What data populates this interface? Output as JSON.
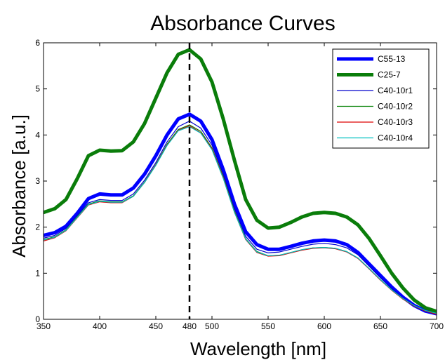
{
  "chart_data": {
    "type": "line",
    "title": "Absorbance Curves",
    "xlabel": "Wavelength [nm]",
    "ylabel": "Absorbance [a.u.]",
    "xlim": [
      350,
      700
    ],
    "ylim": [
      0,
      6
    ],
    "xticks": [
      350,
      400,
      450,
      480,
      500,
      550,
      600,
      650,
      700
    ],
    "yticks": [
      0,
      1,
      2,
      3,
      4,
      5,
      6
    ],
    "grid": false,
    "legend_position": "top-right",
    "vertical_marker": {
      "x": 480,
      "style": "dashed",
      "color": "#000000"
    },
    "x": [
      350,
      360,
      370,
      380,
      390,
      400,
      410,
      420,
      430,
      440,
      450,
      460,
      470,
      480,
      490,
      500,
      510,
      520,
      530,
      540,
      550,
      560,
      570,
      580,
      590,
      600,
      610,
      620,
      630,
      640,
      650,
      660,
      670,
      680,
      690,
      700
    ],
    "series": [
      {
        "name": "C55-13",
        "color": "#0000ff",
        "width": 5,
        "values": [
          1.82,
          1.88,
          2.02,
          2.3,
          2.62,
          2.72,
          2.7,
          2.7,
          2.85,
          3.15,
          3.55,
          4.0,
          4.35,
          4.45,
          4.3,
          3.9,
          3.25,
          2.5,
          1.9,
          1.62,
          1.52,
          1.52,
          1.58,
          1.65,
          1.7,
          1.72,
          1.7,
          1.62,
          1.45,
          1.2,
          0.95,
          0.7,
          0.48,
          0.3,
          0.18,
          0.12
        ]
      },
      {
        "name": "C25-7",
        "color": "#0a7d0a",
        "width": 5,
        "values": [
          2.32,
          2.4,
          2.6,
          3.05,
          3.55,
          3.67,
          3.65,
          3.66,
          3.85,
          4.25,
          4.8,
          5.35,
          5.75,
          5.85,
          5.65,
          5.15,
          4.35,
          3.45,
          2.6,
          2.15,
          1.98,
          2.0,
          2.1,
          2.22,
          2.3,
          2.32,
          2.3,
          2.22,
          2.05,
          1.75,
          1.38,
          1.0,
          0.68,
          0.42,
          0.25,
          0.17
        ]
      },
      {
        "name": "C40-10r1",
        "color": "#0000cc",
        "width": 1.2,
        "values": [
          1.76,
          1.82,
          1.97,
          2.25,
          2.53,
          2.6,
          2.58,
          2.58,
          2.72,
          3.02,
          3.4,
          3.85,
          4.18,
          4.3,
          4.15,
          3.78,
          3.15,
          2.4,
          1.8,
          1.52,
          1.44,
          1.46,
          1.52,
          1.58,
          1.63,
          1.65,
          1.62,
          1.55,
          1.4,
          1.15,
          0.9,
          0.67,
          0.46,
          0.3,
          0.18,
          0.12
        ]
      },
      {
        "name": "C40-10r2",
        "color": "#008000",
        "width": 1.2,
        "values": [
          1.73,
          1.79,
          1.94,
          2.22,
          2.5,
          2.57,
          2.55,
          2.55,
          2.68,
          2.98,
          3.36,
          3.8,
          4.12,
          4.22,
          4.08,
          3.72,
          3.1,
          2.35,
          1.75,
          1.47,
          1.38,
          1.39,
          1.45,
          1.51,
          1.55,
          1.56,
          1.54,
          1.47,
          1.33,
          1.1,
          0.86,
          0.64,
          0.44,
          0.29,
          0.18,
          0.11
        ]
      },
      {
        "name": "C40-10r3",
        "color": "#dd0000",
        "width": 1.2,
        "values": [
          1.7,
          1.77,
          1.92,
          2.2,
          2.48,
          2.55,
          2.53,
          2.53,
          2.67,
          2.97,
          3.35,
          3.78,
          4.1,
          4.2,
          4.05,
          3.7,
          3.08,
          2.33,
          1.73,
          1.45,
          1.37,
          1.38,
          1.44,
          1.5,
          1.54,
          1.55,
          1.53,
          1.46,
          1.32,
          1.09,
          0.85,
          0.63,
          0.44,
          0.29,
          0.18,
          0.11
        ]
      },
      {
        "name": "C40-10r4",
        "color": "#00bfbf",
        "width": 1.2,
        "values": [
          1.72,
          1.78,
          1.93,
          2.21,
          2.49,
          2.56,
          2.54,
          2.54,
          2.67,
          2.97,
          3.34,
          3.77,
          4.09,
          4.18,
          4.04,
          3.68,
          3.06,
          2.32,
          1.74,
          1.46,
          1.38,
          1.39,
          1.45,
          1.51,
          1.55,
          1.56,
          1.54,
          1.47,
          1.33,
          1.1,
          0.86,
          0.64,
          0.45,
          0.3,
          0.19,
          0.13
        ]
      }
    ]
  }
}
